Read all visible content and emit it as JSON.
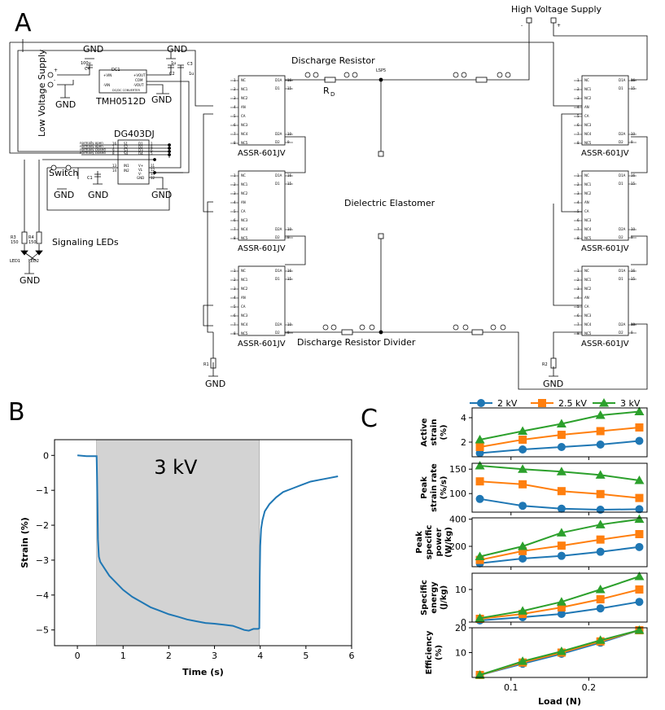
{
  "figure": {
    "panel_a_label": "A",
    "panel_b_label": "B",
    "panel_c_label": "C"
  },
  "circuit": {
    "high_voltage_supply": "High Voltage Supply",
    "hv_minus": "-",
    "hv_plus": "+",
    "low_voltage_supply": "Low Voltage Supply",
    "lv_plus": "+",
    "lv_minus": "-",
    "gnd": "GND",
    "discharge_resistor": "Discharge Resistor",
    "rd_label": "R",
    "rd_sub": "D",
    "lsp_label": "LSP5",
    "dielectric_elastomer": "Dielectric Elastomer",
    "discharge_resistor_divider": "Discharge Resistor Divider",
    "relay_name": "ASSR-601JV",
    "relay_left_pins": [
      "NC",
      "NC1",
      "NC2",
      "AN",
      "CA",
      "NC3",
      "NC4",
      "NC5"
    ],
    "relay_left_nums": [
      "1",
      "2",
      "3",
      "4",
      "5",
      "6",
      "7",
      "8"
    ],
    "relay_right_pins": [
      "D1A",
      "D1",
      "D2A",
      "D2"
    ],
    "relay_right_nums": [
      "16",
      "15",
      "10",
      "9"
    ],
    "dc_label": "DC1",
    "dc_name": "TMH0512D",
    "dc_sub": "DC/DC CONVERTER",
    "dc_pins_left": [
      "+VIN",
      "-VIN"
    ],
    "dc_pins_right": [
      "+VOUT",
      "COM",
      "-VOUT"
    ],
    "cap_c4": "C4",
    "cap_c4_val": "100u",
    "cap_c2": "C2",
    "cap_c3": "C3",
    "cap_c2_val": "1u",
    "cap_c3_val": "1u",
    "mux_name": "DG403DJ",
    "mux_left_labels": [
      "normally open",
      "normally open",
      "normally closed",
      "normally closed"
    ],
    "mux_pins_left": [
      "S1",
      "S2",
      "S3",
      "S4"
    ],
    "mux_pins_right": [
      "D1",
      "D2",
      "D3",
      "D4"
    ],
    "mux_nums_left": [
      "16",
      "1",
      "9",
      "8"
    ],
    "mux_nums_right": [
      "1",
      "8",
      "6",
      "5"
    ],
    "mux_lower_left": [
      "IN1",
      "IN2"
    ],
    "mux_lower_right": [
      "V+",
      "VL",
      "V-",
      "GND"
    ],
    "mux_lower_left_nums": [
      "13",
      "14"
    ],
    "mux_lower_right_nums": [
      "11",
      "12",
      "14",
      "12"
    ],
    "switch": "Switch",
    "cap_c1": "C1",
    "signaling_leds": "Signaling LEDs",
    "r3": "R3",
    "r3_val": "150",
    "r4": "R4",
    "r4_val": "150",
    "led1": "LED1",
    "led2": "LED2",
    "r1": "R1",
    "r2": "R2"
  },
  "chart_data": [
    {
      "type": "line",
      "panel": "B",
      "annotation": "3 kV",
      "xlabel": "Time (s)",
      "ylabel": "Strain (%)",
      "xlim": [
        -0.5,
        6
      ],
      "ylim": [
        -5.45,
        0.45
      ],
      "xticks": [
        0,
        1,
        2,
        3,
        4,
        5,
        6
      ],
      "yticks": [
        0,
        -1,
        -2,
        -3,
        -4,
        -5
      ],
      "shaded_region": [
        0.42,
        3.98
      ],
      "color": "#1f77b4",
      "series": [
        {
          "x": [
            0,
            0.2,
            0.3,
            0.42,
            0.43,
            0.44,
            0.45,
            0.47,
            0.5,
            0.6,
            0.7,
            0.85,
            1.0,
            1.2,
            1.4,
            1.6,
            1.8,
            2.0,
            2.2,
            2.4,
            2.6,
            2.8,
            3.0,
            3.2,
            3.4,
            3.55,
            3.65,
            3.75,
            3.85,
            3.95,
            3.98,
            3.99,
            4.0,
            4.02,
            4.05,
            4.1,
            4.2,
            4.35,
            4.5,
            4.7,
            4.9,
            5.1,
            5.3,
            5.5,
            5.7
          ],
          "y": [
            0,
            -0.02,
            -0.02,
            -0.02,
            -0.6,
            -1.5,
            -2.4,
            -2.9,
            -3.05,
            -3.25,
            -3.45,
            -3.65,
            -3.85,
            -4.05,
            -4.2,
            -4.35,
            -4.45,
            -4.55,
            -4.62,
            -4.7,
            -4.75,
            -4.8,
            -4.82,
            -4.85,
            -4.88,
            -4.95,
            -5.0,
            -5.02,
            -4.97,
            -4.97,
            -4.95,
            -3.5,
            -2.6,
            -2.1,
            -1.85,
            -1.6,
            -1.4,
            -1.2,
            -1.05,
            -0.95,
            -0.85,
            -0.75,
            -0.7,
            -0.65,
            -0.6
          ]
        }
      ]
    },
    {
      "type": "line",
      "panel": "C",
      "subplot": "active_strain",
      "ylabel": [
        "Active",
        "strain",
        "(%)"
      ],
      "x": [
        0.06,
        0.115,
        0.165,
        0.215,
        0.265
      ],
      "ylim": [
        0.8,
        4.8
      ],
      "yticks": [
        2,
        4
      ],
      "series": [
        {
          "name": "2 kV",
          "values": [
            1.1,
            1.4,
            1.6,
            1.8,
            2.1
          ]
        },
        {
          "name": "2.5 kV",
          "values": [
            1.6,
            2.2,
            2.6,
            2.9,
            3.2
          ]
        },
        {
          "name": "3 kV",
          "values": [
            2.2,
            2.9,
            3.5,
            4.2,
            4.5
          ]
        }
      ]
    },
    {
      "type": "line",
      "panel": "C",
      "subplot": "peak_strain_rate",
      "ylabel": [
        "Peak",
        "strain rate",
        "(%/s)"
      ],
      "x": [
        0.06,
        0.115,
        0.165,
        0.215,
        0.265
      ],
      "ylim": [
        62,
        162
      ],
      "yticks": [
        100,
        150
      ],
      "series": [
        {
          "name": "2 kV",
          "values": [
            89,
            75,
            69,
            67,
            68
          ]
        },
        {
          "name": "2.5 kV",
          "values": [
            125,
            119,
            105,
            99,
            91
          ]
        },
        {
          "name": "3 kV",
          "values": [
            157,
            150,
            145,
            138,
            127
          ]
        }
      ]
    },
    {
      "type": "line",
      "panel": "C",
      "subplot": "peak_specific_power",
      "ylabel": [
        "Peak",
        "specific",
        "power",
        "(W/kg)"
      ],
      "x": [
        0.06,
        0.115,
        0.165,
        0.215,
        0.265
      ],
      "ylim": [
        50,
        410
      ],
      "yticks": [
        200,
        400
      ],
      "series": [
        {
          "name": "2 kV",
          "values": [
            75,
            110,
            130,
            160,
            195
          ]
        },
        {
          "name": "2.5 kV",
          "values": [
            100,
            165,
            205,
            250,
            290
          ]
        },
        {
          "name": "3 kV",
          "values": [
            125,
            200,
            300,
            360,
            400
          ]
        }
      ]
    },
    {
      "type": "line",
      "panel": "C",
      "subplot": "specific_energy",
      "ylabel": [
        "Specific",
        "energy",
        "(J/kg)"
      ],
      "x": [
        0.06,
        0.115,
        0.165,
        0.215,
        0.265
      ],
      "ylim": [
        0,
        15
      ],
      "yticks": [
        0,
        10
      ],
      "series": [
        {
          "name": "2 kV",
          "values": [
            0.5,
            1.5,
            2.5,
            4.2,
            6.2
          ]
        },
        {
          "name": "2.5 kV",
          "values": [
            1.0,
            2.5,
            4.5,
            7.0,
            10.0
          ]
        },
        {
          "name": "3 kV",
          "values": [
            1.2,
            3.4,
            6.2,
            10.0,
            14.0
          ]
        }
      ]
    },
    {
      "type": "line",
      "panel": "C",
      "subplot": "efficiency",
      "ylabel": [
        "Efficiency",
        "(%)"
      ],
      "xlabel": "Load (N)",
      "x": [
        0.06,
        0.115,
        0.165,
        0.215,
        0.265
      ],
      "xlim": [
        0.05,
        0.275
      ],
      "xticks": [
        0.1,
        0.2
      ],
      "xticklabels": [
        "0.1",
        "0.2"
      ],
      "ylim": [
        0,
        20
      ],
      "yticks": [
        10,
        20
      ],
      "series": [
        {
          "name": "2 kV",
          "values": [
            1.0,
            5.5,
            9.5,
            14.0,
            19.0
          ]
        },
        {
          "name": "2.5 kV",
          "values": [
            1.0,
            6.0,
            10.0,
            14.5,
            19.0
          ]
        },
        {
          "name": "3 kV",
          "values": [
            1.0,
            6.5,
            10.5,
            15.0,
            19.0
          ]
        }
      ]
    }
  ],
  "legend": {
    "placement": "top",
    "entries": [
      {
        "name": "2 kV",
        "color": "#1f77b4",
        "marker": "circle"
      },
      {
        "name": "2.5 kV",
        "color": "#ff7f0e",
        "marker": "square"
      },
      {
        "name": "3 kV",
        "color": "#2ca02c",
        "marker": "triangle"
      }
    ]
  }
}
